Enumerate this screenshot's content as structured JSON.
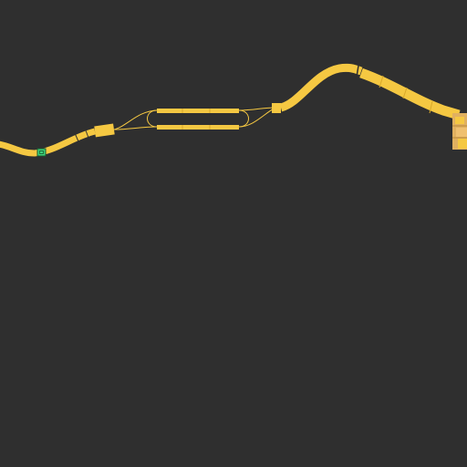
{
  "map": {
    "background": "#2f2f2f",
    "track_color": "#f5c842",
    "track_edge_color": "#d9a92a",
    "station_color": "#e0b060",
    "marker_fill": "#3fd07a",
    "marker_stroke": "#1a5a2e",
    "marker_icon": "station-icon"
  }
}
